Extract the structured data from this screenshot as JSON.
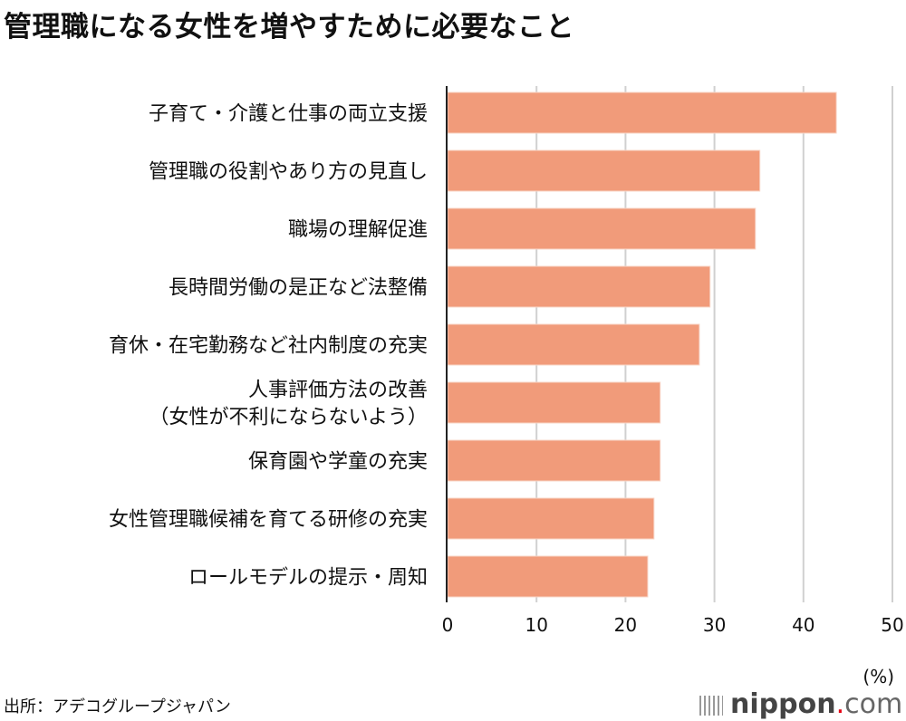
{
  "title": "管理職になる女性を増やすために必要なこと",
  "source": "出所：アデコグループジャパン",
  "logo": {
    "name": "nippon",
    "dot": ".",
    "suffix": "com"
  },
  "chart_data": {
    "type": "bar",
    "orientation": "horizontal",
    "title": "管理職になる女性を増やすために必要なこと",
    "categories": [
      [
        "子育て・介護と仕事の両立支援"
      ],
      [
        "管理職の役割やあり方の見直し"
      ],
      [
        "職場の理解促進"
      ],
      [
        "長時間労働の是正など法整備"
      ],
      [
        "育休・在宅勤務など社内制度の充実"
      ],
      [
        "人事評価方法の改善",
        "（女性が不利にならないよう）"
      ],
      [
        "保育園や学童の充実"
      ],
      [
        "女性管理職候補を育てる研修の充実"
      ],
      [
        "ロールモデルの提示・周知"
      ]
    ],
    "values": [
      43.7,
      35.1,
      34.6,
      29.5,
      28.3,
      23.9,
      23.9,
      23.2,
      22.5
    ],
    "xlim": [
      0,
      50
    ],
    "xticks": [
      "0",
      "10",
      "20",
      "30",
      "40",
      "50"
    ],
    "xunit": "(%)",
    "grid": true,
    "bar_color": "#f19b7a"
  }
}
